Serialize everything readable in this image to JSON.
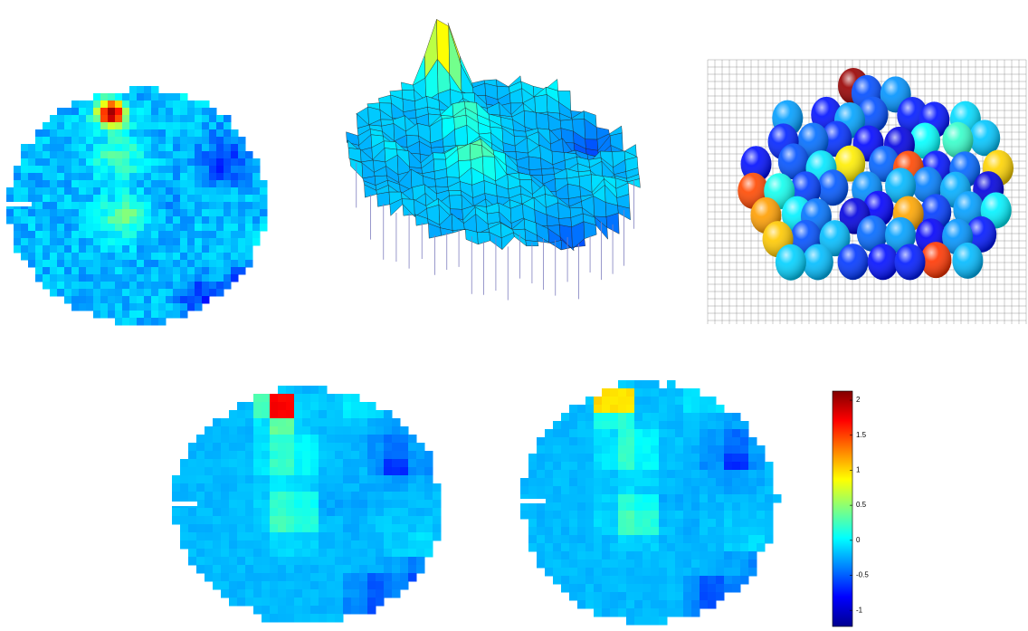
{
  "colorbar": {
    "colormap": "jet",
    "ylim": [
      -1.23,
      2.13
    ],
    "yticks": [
      2,
      1.5,
      1,
      0.5,
      0,
      -0.5,
      -1
    ]
  }
}
